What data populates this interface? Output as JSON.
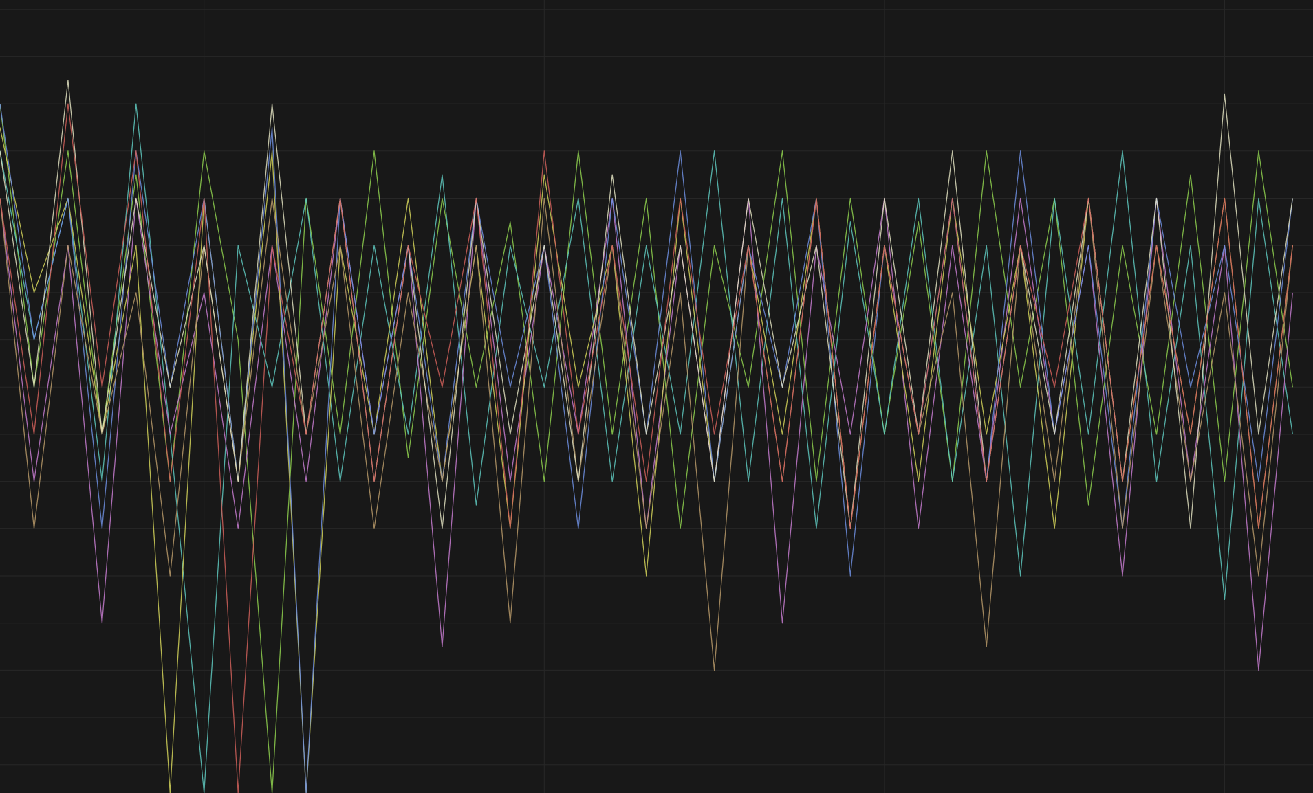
{
  "chart_data": {
    "type": "line",
    "x": [
      0,
      0.1,
      0.2,
      0.3,
      0.4,
      0.5,
      0.6,
      0.7,
      0.8,
      0.9,
      1.0,
      1.1,
      1.2,
      1.3,
      1.4,
      1.5,
      1.6,
      1.7,
      1.8,
      1.9,
      2.0,
      2.1,
      2.2,
      2.3,
      2.4,
      2.5,
      2.6,
      2.7,
      2.8,
      2.9,
      3.0,
      3.1,
      3.2,
      3.3,
      3.4,
      3.5,
      3.6,
      3.7,
      3.8
    ],
    "xlim": [
      0,
      3.86
    ],
    "xticks": [
      0.6,
      1.6,
      2.6,
      3.6
    ],
    "ylim": [
      -0.6,
      16.2
    ],
    "yticks": [
      0,
      1,
      2,
      3,
      4,
      5,
      6,
      7,
      8,
      9,
      10,
      11,
      12,
      13,
      14,
      15,
      16
    ],
    "grid": true,
    "series": [
      {
        "color": "#8fd14f",
        "values": [
          14,
          8,
          13,
          7,
          12.5,
          6,
          13,
          9,
          -0.6,
          12,
          7,
          13,
          6.5,
          12,
          8,
          11.5,
          6,
          13,
          7,
          12,
          5,
          11,
          8,
          13,
          6,
          12,
          7,
          11.5,
          6,
          13,
          8,
          12,
          5.5,
          11,
          7,
          12.5,
          6,
          13,
          8
        ]
      },
      {
        "color": "#5fc9c0",
        "values": [
          13,
          9,
          12,
          6,
          14,
          7,
          -0.6,
          11,
          8,
          12,
          6,
          11,
          7,
          12.5,
          5.5,
          11,
          8,
          12,
          6,
          11,
          7,
          13,
          6,
          12,
          5,
          11.5,
          7,
          12,
          6,
          11,
          4,
          12,
          7,
          13,
          6,
          11,
          3.5,
          12,
          7
        ]
      },
      {
        "color": "#c77dd0",
        "values": [
          12,
          6,
          11,
          3,
          12,
          7,
          10,
          5,
          11,
          6,
          12,
          7,
          11,
          2.5,
          12,
          6,
          11,
          7,
          12,
          5,
          11,
          6,
          12,
          3,
          11,
          7,
          12,
          5,
          11,
          6,
          12,
          7,
          11,
          4,
          12,
          6,
          11,
          2,
          10
        ]
      },
      {
        "color": "#d4d35a",
        "values": [
          13.5,
          10,
          12,
          7,
          11,
          -0.6,
          12,
          6,
          13,
          -0.6,
          11,
          7,
          12,
          6,
          11,
          5,
          12.5,
          8,
          11,
          4,
          12,
          6,
          11,
          7,
          12,
          5,
          11,
          6,
          12,
          7,
          11,
          5,
          12,
          6,
          11,
          7,
          12,
          5,
          11
        ]
      },
      {
        "color": "#6f8fe0",
        "values": [
          14,
          9,
          12,
          5,
          13,
          8,
          12,
          6,
          13.5,
          -0.6,
          12,
          7,
          11,
          6,
          12,
          8,
          11,
          5,
          12,
          7,
          13,
          6,
          11,
          8,
          12,
          4,
          11,
          7,
          12,
          6,
          13,
          7,
          11,
          5,
          12,
          8,
          11,
          6,
          12
        ]
      },
      {
        "color": "#b99a6a",
        "values": [
          12,
          5,
          11,
          7,
          10,
          4,
          11,
          6,
          12,
          7,
          11,
          5,
          10,
          6,
          11,
          3,
          12,
          6,
          11,
          5,
          10,
          2,
          11,
          6,
          12,
          5,
          11,
          7,
          10,
          2.5,
          11,
          6,
          12,
          5,
          11,
          6,
          10,
          4,
          11
        ]
      },
      {
        "color": "#e0e0c0",
        "values": [
          13,
          8,
          14.5,
          7,
          12,
          8,
          11,
          6,
          14,
          7,
          12,
          6,
          11,
          5,
          12,
          7,
          11,
          6,
          12.5,
          7,
          11,
          6,
          12,
          8,
          11,
          5,
          12,
          7,
          13,
          6,
          11,
          7,
          12,
          6,
          12,
          5,
          14.2,
          7,
          12
        ]
      },
      {
        "color": "#d0605a",
        "values": [
          12,
          7,
          14,
          8,
          13,
          6,
          12,
          -0.6,
          11,
          7,
          12,
          6,
          11,
          8,
          12,
          5,
          13,
          7,
          11,
          6,
          12,
          7,
          11,
          6,
          12,
          5,
          11,
          7,
          12,
          6,
          11,
          8,
          12,
          6,
          11,
          7,
          12,
          5,
          11
        ]
      }
    ]
  }
}
